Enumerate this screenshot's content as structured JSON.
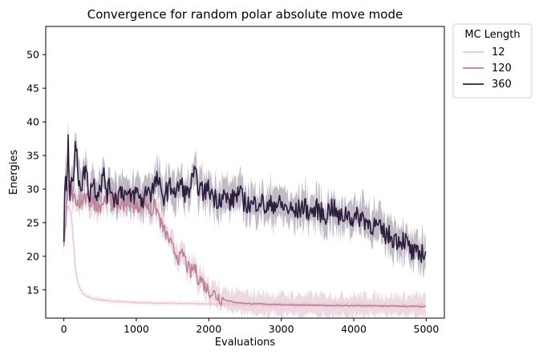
{
  "chart_data": {
    "type": "line",
    "title": "Convergence for random polar absolute move mode",
    "xlabel": "Evaluations",
    "ylabel": "Energies",
    "xlim": [
      -250,
      5250
    ],
    "ylim": [
      10.8,
      54.2
    ],
    "xticks": [
      0,
      1000,
      2000,
      3000,
      4000,
      5000
    ],
    "yticks": [
      15,
      20,
      25,
      30,
      35,
      40,
      45,
      50
    ],
    "grid": false,
    "legend": {
      "title": "MC Length",
      "placement": "outside-top-right"
    },
    "series": [
      {
        "name": "12",
        "color": "#ecc7cb",
        "x": [
          0,
          30,
          60,
          100,
          130,
          160,
          200,
          250,
          300,
          400,
          500,
          700,
          1000,
          1500,
          2000,
          3000,
          4000,
          5000
        ],
        "y": [
          21.5,
          26,
          27.5,
          26.5,
          22.5,
          18,
          15.8,
          14.6,
          14.1,
          13.7,
          13.5,
          13.3,
          13.1,
          13.0,
          12.9,
          12.8,
          12.7,
          12.6
        ]
      },
      {
        "name": "120",
        "color": "#c0809a",
        "x": [
          0,
          40,
          80,
          120,
          200,
          300,
          400,
          500,
          600,
          700,
          800,
          900,
          1000,
          1100,
          1200,
          1250,
          1300,
          1350,
          1400,
          1450,
          1500,
          1550,
          1600,
          1650,
          1700,
          1750,
          1800,
          1850,
          1900,
          1950,
          2000,
          2100,
          2200,
          2300,
          2400,
          2500,
          2700,
          3000,
          3500,
          4000,
          4500,
          5000
        ],
        "y": [
          21.5,
          28,
          31,
          29,
          27.5,
          28.5,
          28,
          27.5,
          29,
          28,
          27.5,
          28.5,
          27,
          28.5,
          26.5,
          27.5,
          26.5,
          24.5,
          23.5,
          22.5,
          21,
          20.5,
          19.5,
          20.5,
          18.5,
          17.5,
          18.5,
          16.8,
          16.5,
          15.5,
          15,
          14.2,
          13.6,
          13.3,
          13.1,
          13.0,
          12.9,
          12.8,
          12.7,
          12.65,
          12.6,
          12.5
        ]
      },
      {
        "name": "360",
        "color": "#2d1e3e",
        "x": [
          0,
          20,
          40,
          60,
          80,
          100,
          130,
          160,
          200,
          250,
          300,
          350,
          400,
          450,
          500,
          550,
          600,
          650,
          700,
          800,
          900,
          1000,
          1100,
          1150,
          1200,
          1300,
          1350,
          1400,
          1500,
          1550,
          1600,
          1700,
          1800,
          1900,
          2000,
          2100,
          2200,
          2300,
          2400,
          2500,
          2600,
          2700,
          2800,
          2900,
          3000,
          3100,
          3200,
          3300,
          3400,
          3500,
          3600,
          3700,
          3800,
          3900,
          4000,
          4100,
          4200,
          4300,
          4400,
          4500,
          4600,
          4700,
          4800,
          4900,
          4950,
          5000
        ],
        "y": [
          21.7,
          32.8,
          30.5,
          36.5,
          29,
          33,
          31,
          36.8,
          32,
          30.5,
          33.5,
          29,
          31.5,
          29.5,
          30.5,
          32,
          29.5,
          30.5,
          28.5,
          30,
          28.5,
          29.5,
          28,
          30.5,
          29.5,
          31.5,
          28.5,
          29.5,
          30.5,
          29,
          31,
          29,
          32,
          29.5,
          30,
          28.5,
          29,
          28,
          29.5,
          28,
          27.5,
          28.5,
          27,
          28,
          27.5,
          27,
          26.5,
          27.5,
          26.5,
          27,
          26,
          27.5,
          25.5,
          26.5,
          25.5,
          26,
          25,
          24.5,
          23.5,
          23,
          22.5,
          22.5,
          20.5,
          20,
          21,
          19.8
        ]
      }
    ]
  }
}
